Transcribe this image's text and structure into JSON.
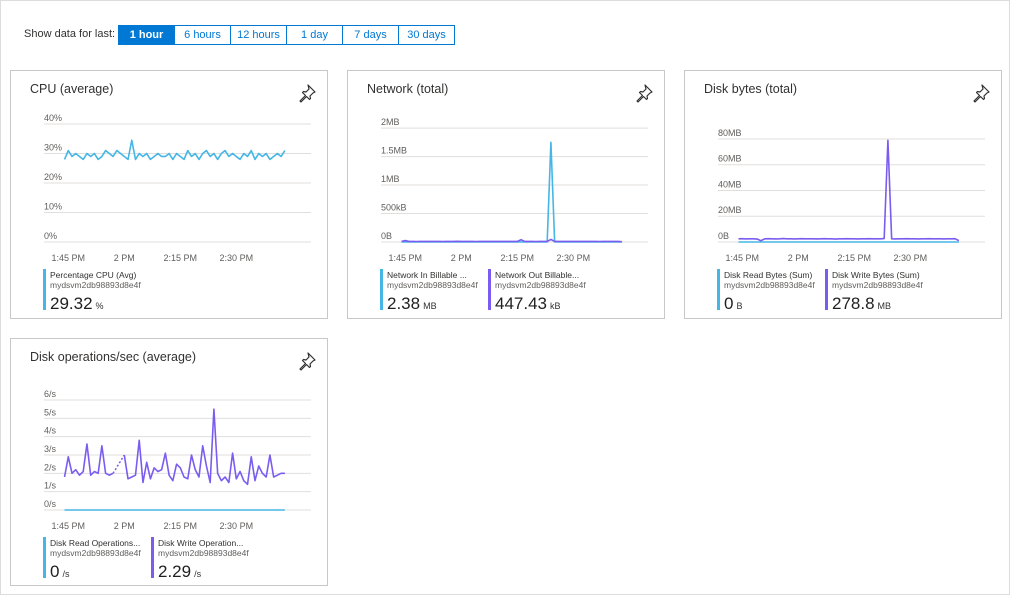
{
  "controls": {
    "label": "Show data for last:",
    "options": [
      "1 hour",
      "6 hours",
      "12 hours",
      "1 day",
      "7 days",
      "30 days"
    ],
    "selected": 0
  },
  "chart_data": [
    {
      "type": "line",
      "title": "CPU (average)",
      "grid": true,
      "x": [
        824,
        825,
        826,
        827,
        828,
        829,
        830,
        831,
        832,
        833,
        834,
        835,
        836,
        837,
        838,
        839,
        840,
        841,
        842,
        843,
        844,
        845,
        846,
        847,
        848,
        849,
        850,
        851,
        852,
        853,
        854,
        855,
        856,
        857,
        858,
        859,
        860,
        861,
        862,
        863,
        864,
        865,
        866,
        867,
        868,
        869,
        870,
        871,
        872,
        873,
        874,
        875,
        876,
        877,
        878,
        879,
        880,
        881,
        882,
        883
      ],
      "xlim": [
        818.5,
        890
      ],
      "xticks": [
        {
          "value": 825,
          "label": "1:45 PM"
        },
        {
          "value": 840,
          "label": "2 PM"
        },
        {
          "value": 855,
          "label": "2:15 PM"
        },
        {
          "value": 870,
          "label": "2:30 PM"
        }
      ],
      "ylim": [
        0,
        41.7
      ],
      "yticks": [
        {
          "value": 0,
          "label": "0%"
        },
        {
          "value": 10,
          "label": "10%"
        },
        {
          "value": 20,
          "label": "20%"
        },
        {
          "value": 30,
          "label": "30%"
        },
        {
          "value": 40,
          "label": "40%"
        }
      ],
      "series": [
        {
          "name": "Percentage CPU (Avg)",
          "resource": "mydsvm2db98893d8e4f",
          "color": "#45b6e6",
          "summary": {
            "value": 29.32,
            "unit": "%"
          },
          "values": [
            28,
            31,
            29,
            30,
            29,
            28,
            30,
            29,
            30,
            28,
            29,
            31,
            30,
            29,
            31,
            30,
            29,
            28,
            34.5,
            28,
            30,
            29,
            30,
            28,
            29,
            30,
            29,
            29,
            30,
            28,
            30,
            29,
            28,
            31,
            29,
            30,
            28,
            30,
            31,
            29,
            30,
            28,
            30,
            31,
            29,
            30,
            29,
            28,
            30,
            29,
            31,
            28,
            30,
            29,
            30,
            28,
            29,
            30,
            29,
            31
          ]
        }
      ]
    },
    {
      "type": "line",
      "title": "Network (total)",
      "grid": true,
      "x": [
        824,
        825,
        826,
        827,
        828,
        829,
        830,
        831,
        832,
        833,
        834,
        835,
        836,
        837,
        838,
        839,
        840,
        841,
        842,
        843,
        844,
        845,
        846,
        847,
        848,
        849,
        850,
        851,
        852,
        853,
        854,
        855,
        856,
        857,
        858,
        859,
        860,
        861,
        862,
        863,
        864,
        865,
        866,
        867,
        868,
        869,
        870,
        871,
        872,
        873,
        874,
        875,
        876,
        877,
        878,
        879,
        880,
        881,
        882,
        883
      ],
      "xlim": [
        818.5,
        890
      ],
      "xticks": [
        {
          "value": 825,
          "label": "1:45 PM"
        },
        {
          "value": 840,
          "label": "2 PM"
        },
        {
          "value": 855,
          "label": "2:15 PM"
        },
        {
          "value": 870,
          "label": "2:30 PM"
        }
      ],
      "ylim": [
        0,
        2160000
      ],
      "yticks": [
        {
          "value": 0,
          "label": "0B"
        },
        {
          "value": 500000,
          "label": "500kB"
        },
        {
          "value": 1000000,
          "label": "1MB"
        },
        {
          "value": 1500000,
          "label": "1.5MB"
        },
        {
          "value": 2000000,
          "label": "2MB"
        }
      ],
      "series": [
        {
          "name": "Network In Billable ...",
          "resource": "mydsvm2db98893d8e4f",
          "color": "#45b6e6",
          "summary": {
            "value": 2.38,
            "unit": "MB"
          },
          "values": [
            2000,
            2000,
            2000,
            2000,
            2000,
            2000,
            2000,
            2000,
            2000,
            2000,
            2000,
            2000,
            2000,
            2000,
            2000,
            2000,
            2000,
            2000,
            2000,
            2000,
            2000,
            2000,
            2000,
            2000,
            2000,
            2000,
            2000,
            2000,
            2000,
            2000,
            2000,
            2000,
            2000,
            2000,
            2000,
            2000,
            2000,
            2000,
            2000,
            2000,
            1750000,
            2000,
            2000,
            2000,
            2000,
            2000,
            2000,
            2000,
            2000,
            2000,
            2000,
            2000,
            2000,
            2000,
            2000,
            2000,
            2000,
            2000,
            2000,
            2000
          ]
        },
        {
          "name": "Network Out Billable...",
          "resource": "mydsvm2db98893d8e4f",
          "color": "#7b5cf0",
          "summary": {
            "value": 447.43,
            "unit": "kB"
          },
          "values": [
            10000,
            25000,
            10000,
            10000,
            9000,
            10000,
            10000,
            11000,
            10000,
            10000,
            10000,
            9000,
            10000,
            10000,
            10000,
            12000,
            10000,
            10000,
            10000,
            10000,
            9000,
            10000,
            10000,
            10000,
            10000,
            11000,
            10000,
            10000,
            10000,
            10000,
            10000,
            10000,
            40000,
            10000,
            10000,
            10000,
            9000,
            10000,
            10000,
            10000,
            45000,
            10000,
            10000,
            10000,
            10000,
            10000,
            11000,
            10000,
            10000,
            10000,
            10000,
            10000,
            10000,
            9000,
            10000,
            10000,
            10000,
            10000,
            10000,
            5000
          ]
        }
      ]
    },
    {
      "type": "line",
      "title": "Disk bytes (total)",
      "grid": true,
      "x": [
        824,
        825,
        826,
        827,
        828,
        829,
        830,
        831,
        832,
        833,
        834,
        835,
        836,
        837,
        838,
        839,
        840,
        841,
        842,
        843,
        844,
        845,
        846,
        847,
        848,
        849,
        850,
        851,
        852,
        853,
        854,
        855,
        856,
        857,
        858,
        859,
        860,
        861,
        862,
        863,
        864,
        865,
        866,
        867,
        868,
        869,
        870,
        871,
        872,
        873,
        874,
        875,
        876,
        877,
        878,
        879,
        880,
        881,
        882,
        883
      ],
      "xlim": [
        818.5,
        890
      ],
      "xticks": [
        {
          "value": 825,
          "label": "1:45 PM"
        },
        {
          "value": 840,
          "label": "2 PM"
        },
        {
          "value": 855,
          "label": "2:15 PM"
        },
        {
          "value": 870,
          "label": "2:30 PM"
        }
      ],
      "ylim": [
        0,
        95500000
      ],
      "yticks": [
        {
          "value": 0,
          "label": "0B"
        },
        {
          "value": 20000000,
          "label": "20MB"
        },
        {
          "value": 40000000,
          "label": "40MB"
        },
        {
          "value": 60000000,
          "label": "60MB"
        },
        {
          "value": 80000000,
          "label": "80MB"
        }
      ],
      "series": [
        {
          "name": "Disk Read Bytes (Sum)",
          "resource": "mydsvm2db98893d8e4f",
          "color": "#45b6e6",
          "summary": {
            "value": 0,
            "unit": "B"
          },
          "values": [
            0,
            0,
            0,
            0,
            0,
            0,
            0,
            0,
            0,
            0,
            0,
            0,
            0,
            0,
            0,
            0,
            0,
            0,
            0,
            0,
            0,
            0,
            0,
            0,
            0,
            0,
            0,
            0,
            0,
            0,
            0,
            0,
            0,
            0,
            0,
            0,
            0,
            0,
            0,
            0,
            0,
            0,
            0,
            0,
            0,
            0,
            0,
            0,
            0,
            0,
            0,
            0,
            0,
            0,
            0,
            0,
            0,
            0,
            0,
            0
          ]
        },
        {
          "name": "Disk Write Bytes (Sum)",
          "resource": "mydsvm2db98893d8e4f",
          "color": "#7b5cf0",
          "summary": {
            "value": 278.8,
            "unit": "MB"
          },
          "values": [
            2500000,
            2600000,
            2400000,
            2500000,
            2500000,
            2300000,
            1000000,
            2500000,
            2600000,
            2500000,
            2400000,
            2500000,
            2700000,
            2500000,
            2500000,
            2400000,
            2500000,
            2600000,
            2500000,
            2500000,
            2500000,
            2400000,
            2500000,
            2600000,
            2500000,
            2500000,
            2300000,
            2500000,
            2500000,
            2600000,
            2500000,
            2500000,
            2400000,
            2500000,
            2500000,
            2600000,
            2500000,
            2500000,
            2500000,
            2700000,
            79000000,
            2500000,
            2400000,
            2500000,
            2500000,
            2600000,
            2500000,
            2500000,
            2400000,
            2500000,
            2500000,
            2600000,
            2500000,
            2500000,
            2500000,
            2400000,
            2500000,
            2500000,
            2600000,
            1000000
          ]
        }
      ]
    },
    {
      "type": "line",
      "title": "Disk operations/sec (average)",
      "grid": true,
      "x": [
        824,
        825,
        826,
        827,
        828,
        829,
        830,
        831,
        832,
        833,
        834,
        835,
        836,
        837,
        838,
        839,
        840,
        841,
        842,
        843,
        844,
        845,
        846,
        847,
        848,
        849,
        850,
        851,
        852,
        853,
        854,
        855,
        856,
        857,
        858,
        859,
        860,
        861,
        862,
        863,
        864,
        865,
        866,
        867,
        868,
        869,
        870,
        871,
        872,
        873,
        874,
        875,
        876,
        877,
        878,
        879,
        880,
        881,
        882,
        883
      ],
      "xlim": [
        818.5,
        890
      ],
      "xticks": [
        {
          "value": 825,
          "label": "1:45 PM"
        },
        {
          "value": 840,
          "label": "2 PM"
        },
        {
          "value": 855,
          "label": "2:15 PM"
        },
        {
          "value": 870,
          "label": "2:30 PM"
        }
      ],
      "ylim": [
        0,
        6.71
      ],
      "yticks": [
        {
          "value": 0,
          "label": "0/s"
        },
        {
          "value": 1,
          "label": "1/s"
        },
        {
          "value": 2,
          "label": "2/s"
        },
        {
          "value": 3,
          "label": "3/s"
        },
        {
          "value": 4,
          "label": "4/s"
        },
        {
          "value": 5,
          "label": "5/s"
        },
        {
          "value": 6,
          "label": "6/s"
        }
      ],
      "series": [
        {
          "name": "Disk Read Operations...",
          "resource": "mydsvm2db98893d8e4f",
          "color": "#45b6e6",
          "summary": {
            "value": 0,
            "unit": "/s"
          },
          "values": [
            0,
            0,
            0,
            0,
            0,
            0,
            0,
            0,
            0,
            0,
            0,
            0,
            0,
            0,
            0,
            0,
            0,
            0,
            0,
            0,
            0,
            0,
            0,
            0,
            0,
            0,
            0,
            0,
            0,
            0,
            0,
            0,
            0,
            0,
            0,
            0,
            0,
            0,
            0,
            0,
            0,
            0,
            0,
            0,
            0,
            0,
            0,
            0,
            0,
            0,
            0,
            0,
            0,
            0,
            0,
            0,
            0,
            0,
            0,
            0
          ]
        },
        {
          "name": "Disk Write Operation...",
          "resource": "mydsvm2db98893d8e4f",
          "color": "#7b5cf0",
          "summary": {
            "value": 2.29,
            "unit": "/s"
          },
          "values": [
            1.8,
            2.9,
            2.0,
            2.2,
            1.9,
            2.1,
            3.6,
            1.9,
            2.1,
            2.0,
            3.5,
            2.0,
            1.9,
            2.0,
            null,
            null,
            3.0,
            1.7,
            1.8,
            1.9,
            3.8,
            1.5,
            2.6,
            1.7,
            2.3,
            2.1,
            2.2,
            3.1,
            1.9,
            1.6,
            2.5,
            2.3,
            1.8,
            1.7,
            3.0,
            2.2,
            1.8,
            3.5,
            2.4,
            1.5,
            5.5,
            2.0,
            1.6,
            1.8,
            1.5,
            3.1,
            1.7,
            2.1,
            1.6,
            1.4,
            2.9,
            1.6,
            2.4,
            2.0,
            1.8,
            3.0,
            1.8,
            1.9,
            2.0,
            2.0
          ]
        }
      ]
    }
  ]
}
